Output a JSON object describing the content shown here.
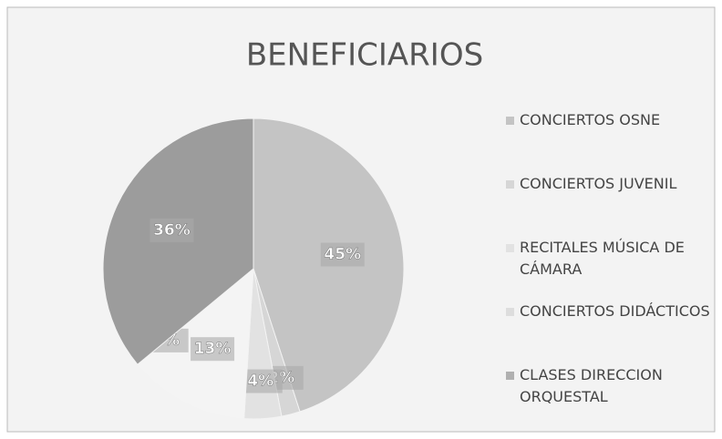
{
  "chart_data": {
    "type": "pie",
    "title": "BENEFICIARIOS",
    "categories": [
      "CONCIERTOS OSNE",
      "CONCIERTOS JUVENIL",
      "RECITALES MÚSICA DE CÁMARA",
      "CONCIERTOS DIDÁCTICOS",
      "CLASES DIRECCION ORQUESTAL",
      null
    ],
    "values": [
      45,
      2,
      4,
      13,
      0,
      36
    ],
    "value_labels": [
      "45%",
      "2%",
      "4%",
      "13%",
      "0%",
      "36%"
    ],
    "colors": [
      "#c4c4c4",
      "#d6d6d6",
      "#e2e2e2",
      "#f4f4f4",
      "#b0b0b0",
      "#9c9c9c"
    ],
    "legend": "right"
  }
}
